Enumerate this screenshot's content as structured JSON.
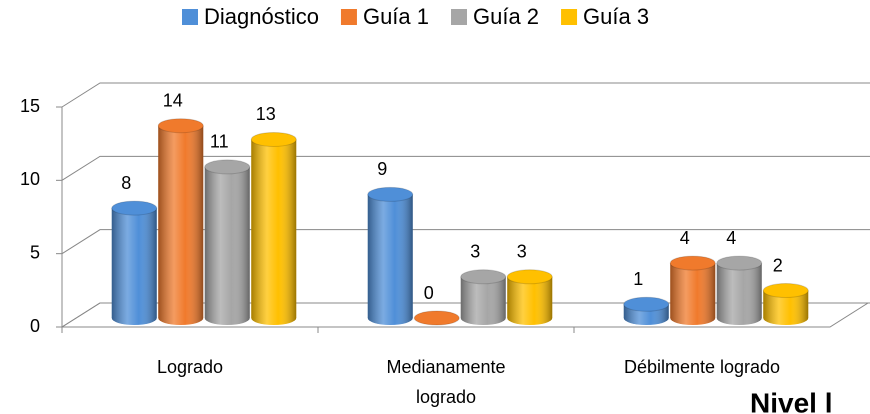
{
  "chart_data": {
    "type": "bar3d",
    "categories": [
      "Logrado",
      "Medianamente logrado",
      "Débilmente logrado"
    ],
    "series": [
      {
        "name": "Diagnóstico",
        "color": "#4f8fd8",
        "values": [
          8,
          9,
          1
        ]
      },
      {
        "name": "Guía 1",
        "color": "#f07a2c",
        "values": [
          14,
          0,
          4
        ]
      },
      {
        "name": "Guía 2",
        "color": "#a6a6a6",
        "values": [
          11,
          3,
          4
        ]
      },
      {
        "name": "Guía 3",
        "color": "#ffc000",
        "values": [
          13,
          3,
          2
        ]
      }
    ],
    "ylim": [
      0,
      15
    ],
    "yticks": [
      0,
      5,
      10,
      15
    ],
    "grid": true,
    "legend": "top",
    "annotation": "Nivel l"
  }
}
